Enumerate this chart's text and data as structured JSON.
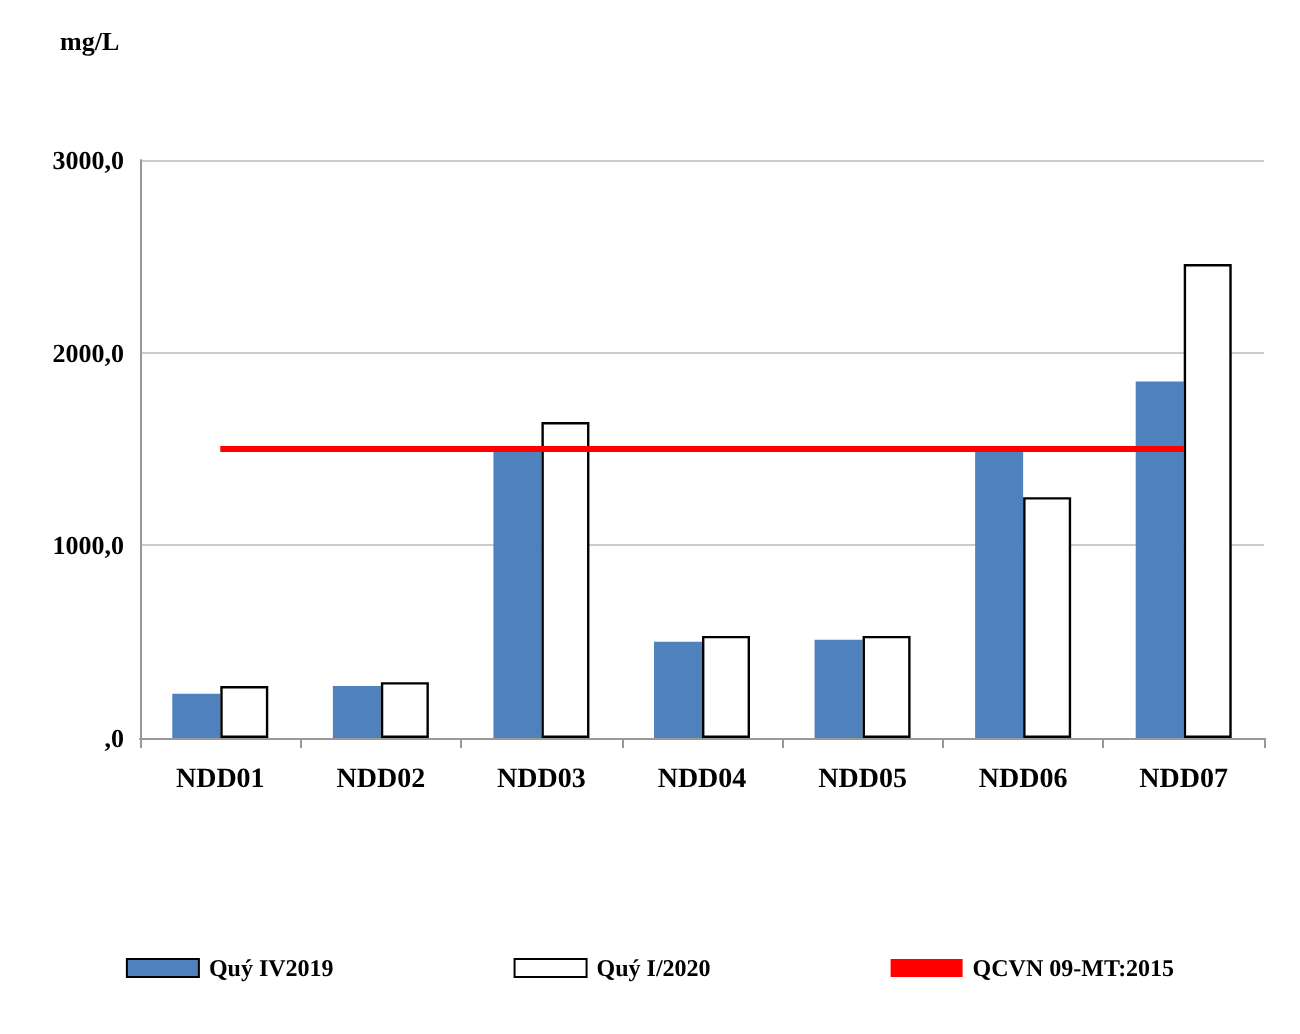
{
  "chart_data": {
    "type": "bar",
    "ylabel": "mg/L",
    "categories": [
      "NDD01",
      "NDD02",
      "NDD03",
      "NDD04",
      "NDD05",
      "NDD06",
      "NDD07"
    ],
    "series": [
      {
        "name": "Quý IV2019",
        "color": "#4f81bd",
        "values": [
          230,
          270,
          1510,
          500,
          510,
          1500,
          1850
        ]
      },
      {
        "name": "Quý I/2020",
        "color": "#ffffff",
        "values": [
          270,
          290,
          1640,
          530,
          530,
          1250,
          2460
        ]
      },
      {
        "name": "QCVN 09-MT:2015",
        "type": "line",
        "color": "#ff0000",
        "values": [
          1500,
          1500,
          1500,
          1500,
          1500,
          1500,
          1500
        ]
      }
    ],
    "ylim": [
      0,
      3000
    ],
    "yticks": [
      {
        "value": 0,
        "label": ",0"
      },
      {
        "value": 1000,
        "label": "1000,0"
      },
      {
        "value": 2000,
        "label": "2000,0"
      },
      {
        "value": 3000,
        "label": "3000,0"
      }
    ],
    "grid": "y",
    "legend": "bottom",
    "line_style": "solid"
  }
}
